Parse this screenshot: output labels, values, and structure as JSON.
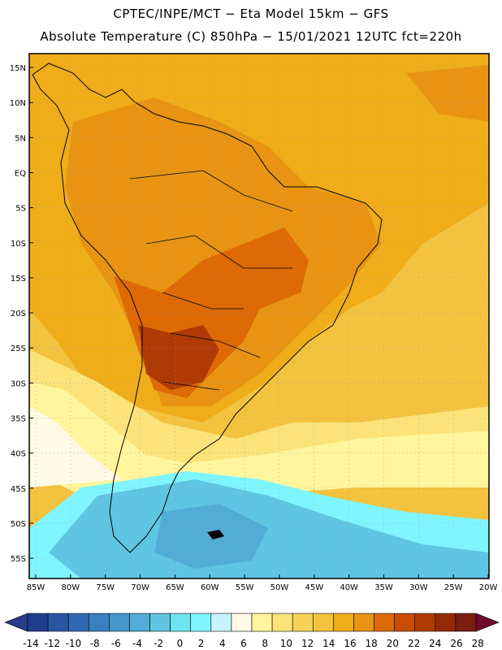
{
  "header": {
    "line1": "CPTEC/INPE/MCT −  Eta Model 15km − GFS",
    "line2": "Absolute Temperature (C) 850hPa − 15/01/2021 12UTC fct=220h"
  },
  "axes": {
    "lat_labels": [
      "15N",
      "10N",
      "5N",
      "EQ",
      "5S",
      "10S",
      "15S",
      "20S",
      "25S",
      "30S",
      "35S",
      "40S",
      "45S",
      "50S",
      "55S"
    ],
    "lon_labels": [
      "85W",
      "80W",
      "75W",
      "70W",
      "65W",
      "60W",
      "55W",
      "50W",
      "45W",
      "40W",
      "35W",
      "30W",
      "25W",
      "20W"
    ]
  },
  "colorbar": {
    "labels": [
      "-14",
      "-12",
      "-10",
      "-8",
      "-6",
      "-4",
      "-2",
      "0",
      "2",
      "4",
      "6",
      "8",
      "10",
      "12",
      "14",
      "16",
      "18",
      "20",
      "22",
      "24",
      "26",
      "28"
    ],
    "colors": [
      "#1e3c8c",
      "#2a55a3",
      "#3068b2",
      "#3a7fbf",
      "#4596c9",
      "#52add6",
      "#5fc5e2",
      "#6de3f0",
      "#7ff5ff",
      "#c8f3ff",
      "#fff9e5",
      "#fff59c",
      "#fbe37a",
      "#f7d258",
      "#f3c23f",
      "#efad1a",
      "#e89412",
      "#dd6a05",
      "#c84d02",
      "#b03a03",
      "#942a05",
      "#7a1e10"
    ],
    "left_color": "#2a3c8c",
    "right_color": "#6e0a2a"
  },
  "map_colors": {
    "ocean_warm": "#f3c23f",
    "tropics": "#efad1a",
    "amazon": "#e89412",
    "hot_core": "#dd6a05",
    "hottest": "#b03a03",
    "mild": "#fbe37a",
    "cool": "#fff59c",
    "cooler": "#fff9e5",
    "cold": "#7ff5ff",
    "colder": "#5fc5e2",
    "coldest": "#52add6",
    "coast": "#000000"
  }
}
